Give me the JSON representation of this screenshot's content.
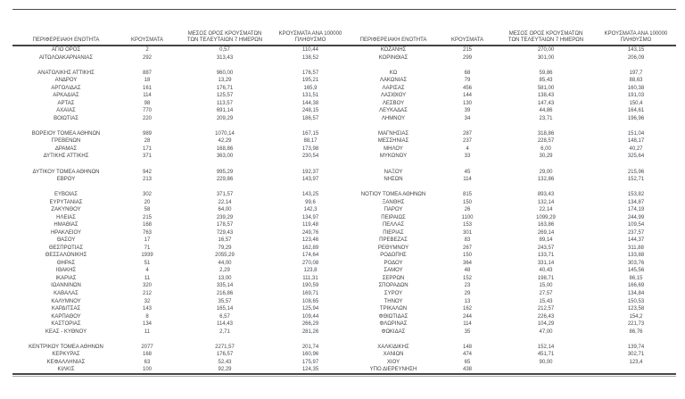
{
  "header": {
    "col_region": "ΠΕΡΙΦΕΡΕΙΑΚΗ ΕΝΟΤΗΤΑ",
    "col_cases": "ΚΡΟΥΣΜΑΤΑ",
    "col_avg7_line1": "ΜΕΣΟΣ ΟΡΟΣ ΚΡΟΥΣΜΑΤΩΝ",
    "col_avg7_line2": "ΤΩΝ ΤΕΛΕΥΤΑΙΩΝ 7 ΗΜΕΡΩΝ",
    "col_per100k_line1": "ΚΡΟΥΣΜΑΤΑ ΑΝΑ 100000",
    "col_per100k_line2": "ΠΛΗΘΥΣΜΟ"
  },
  "colors": {
    "text": "#3f3f3f",
    "numbers": "#45484e",
    "rule_dark": "#474747",
    "rule_light": "#a9a9a9",
    "background": "#ffffff"
  },
  "left_table": {
    "rows": [
      [
        "ΑΓΙΟ ΟΡΟΣ",
        "2",
        "0,57",
        "110,44"
      ],
      [
        "ΑΙΤΩΛΟΑΚΑΡΝΑΝΙΑΣ",
        "292",
        "313,43",
        "138,52"
      ],
      [
        "",
        "",
        "",
        ""
      ],
      [
        "ΑΝΑΤΟΛΙΚΗΣ ΑΤΤΙΚΗΣ",
        "887",
        "960,00",
        "176,57"
      ],
      [
        "ΑΝΔΡΟΥ",
        "18",
        "13,29",
        "195,21"
      ],
      [
        "ΑΡΓΟΛΙΔΑΣ",
        "161",
        "176,71",
        "165,9"
      ],
      [
        "ΑΡΚΑΔΙΑΣ",
        "114",
        "125,57",
        "131,51"
      ],
      [
        "ΑΡΤΑΣ",
        "98",
        "113,57",
        "144,38"
      ],
      [
        "ΑΧΑΪΑΣ",
        "770",
        "691,14",
        "248,15"
      ],
      [
        "ΒΟΙΩΤΙΑΣ",
        "220",
        "209,29",
        "186,57"
      ],
      [
        "",
        "",
        "",
        ""
      ],
      [
        "ΒΟΡΕΙΟΥ ΤΟΜΕΑ ΑΘΗΝΩΝ",
        "989",
        "1070,14",
        "167,15"
      ],
      [
        "ΓΡΕΒΕΝΩΝ",
        "28",
        "42,29",
        "88,17"
      ],
      [
        "ΔΡΑΜΑΣ",
        "171",
        "168,86",
        "173,98"
      ],
      [
        "ΔΥΤΙΚΗΣ ΑΤΤΙΚΗΣ",
        "371",
        "363,00",
        "230,54"
      ],
      [
        "",
        "",
        "",
        ""
      ],
      [
        "ΔΥΤΙΚΟΥ ΤΟΜΕΑ ΑΘΗΝΩΝ",
        "942",
        "995,29",
        "192,37"
      ],
      [
        "ΕΒΡΟΥ",
        "213",
        "229,86",
        "143,97"
      ],
      [
        "",
        "",
        "",
        ""
      ],
      [
        "ΕΥΒΟΙΑΣ",
        "302",
        "371,57",
        "143,25"
      ],
      [
        "ΕΥΡΥΤΑΝΙΑΣ",
        "20",
        "22,14",
        "99,6"
      ],
      [
        "ΖΑΚΥΝΘΟΥ",
        "58",
        "64,00",
        "142,3"
      ],
      [
        "ΗΛΕΙΑΣ",
        "215",
        "239,29",
        "134,97"
      ],
      [
        "ΗΜΑΘΙΑΣ",
        "168",
        "178,57",
        "119,48"
      ],
      [
        "ΗΡΑΚΛΕΙΟΥ",
        "763",
        "729,43",
        "249,76"
      ],
      [
        "ΘΑΣΟΥ",
        "17",
        "16,57",
        "123,46"
      ],
      [
        "ΘΕΣΠΡΩΤΙΑΣ",
        "71",
        "79,29",
        "162,89"
      ],
      [
        "ΘΕΣΣΑΛΟΝΙΚΗΣ",
        "1939",
        "2055,29",
        "174,64"
      ],
      [
        "ΘΗΡΑΣ",
        "51",
        "44,00",
        "270,08"
      ],
      [
        "ΙΘΑΚΗΣ",
        "4",
        "2,29",
        "123,8"
      ],
      [
        "ΙΚΑΡΙΑΣ",
        "11",
        "13,00",
        "111,31"
      ],
      [
        "ΙΩΑΝΝΙΝΩΝ",
        "320",
        "335,14",
        "190,59"
      ],
      [
        "ΚΑΒΑΛΑΣ",
        "212",
        "216,86",
        "169,71"
      ],
      [
        "ΚΑΛΥΜΝΟΥ",
        "32",
        "35,57",
        "108,65"
      ],
      [
        "ΚΑΡΔΙΤΣΑΣ",
        "143",
        "165,14",
        "125,94"
      ],
      [
        "ΚΑΡΠΑΘΟΥ",
        "8",
        "6,57",
        "109,44"
      ],
      [
        "ΚΑΣΤΟΡΙΑΣ",
        "134",
        "114,43",
        "266,29"
      ],
      [
        "ΚΕΑΣ - ΚΥΘΝΟΥ",
        "11",
        "2,71",
        "281,26"
      ],
      [
        "",
        "",
        "",
        ""
      ],
      [
        "ΚΕΝΤΡΙΚΟΥ ΤΟΜΕΑ ΑΘΗΝΩΝ",
        "2077",
        "2271,57",
        "201,74"
      ],
      [
        "ΚΕΡΚΥΡΑΣ",
        "168",
        "176,57",
        "160,96"
      ],
      [
        "ΚΕΦΑΛΛΗΝΙΑΣ",
        "63",
        "52,43",
        "175,97"
      ],
      [
        "ΚΙΛΚΙΣ",
        "100",
        "92,29",
        "124,35"
      ]
    ]
  },
  "right_table": {
    "rows": [
      [
        "ΚΟΖΑΝΗΣ",
        "215",
        "270,00",
        "143,15"
      ],
      [
        "ΚΟΡΙΝΘΙΑΣ",
        "299",
        "301,00",
        "206,09"
      ],
      [
        "",
        "",
        "",
        ""
      ],
      [
        "ΚΩ",
        "68",
        "59,86",
        "197,7"
      ],
      [
        "ΛΑΚΩΝΙΑΣ",
        "79",
        "85,43",
        "88,63"
      ],
      [
        "ΛΑΡΙΣΑΣ",
        "456",
        "581,00",
        "160,38"
      ],
      [
        "ΛΑΣΙΘΙΟΥ",
        "144",
        "138,43",
        "191,03"
      ],
      [
        "ΛΕΣΒΟΥ",
        "130",
        "147,43",
        "150,4"
      ],
      [
        "ΛΕΥΚΑΔΑΣ",
        "39",
        "44,86",
        "164,61"
      ],
      [
        "ΛΗΜΝΟΥ",
        "34",
        "23,71",
        "196,96"
      ],
      [
        "",
        "",
        "",
        ""
      ],
      [
        "ΜΑΓΝΗΣΙΑΣ",
        "287",
        "318,86",
        "151,04"
      ],
      [
        "ΜΕΣΣΗΝΙΑΣ",
        "237",
        "228,57",
        "148,17"
      ],
      [
        "ΜΗΛΟΥ",
        "4",
        "6,00",
        "40,27"
      ],
      [
        "ΜΥΚΟΝΟΥ",
        "33",
        "30,29",
        "325,64"
      ],
      [
        "",
        "",
        "",
        ""
      ],
      [
        "ΝΑΞΟΥ",
        "45",
        "29,00",
        "215,96"
      ],
      [
        "ΝΗΣΩΝ",
        "114",
        "132,86",
        "152,71"
      ],
      [
        "",
        "",
        "",
        ""
      ],
      [
        "ΝΟΤΙΟΥ ΤΟΜΕΑ ΑΘΗΝΩΝ",
        "815",
        "893,43",
        "153,82"
      ],
      [
        "ΞΑΝΘΗΣ",
        "150",
        "132,14",
        "134,87"
      ],
      [
        "ΠΑΡΟΥ",
        "26",
        "22,14",
        "174,19"
      ],
      [
        "ΠΕΙΡΑΙΩΣ",
        "1100",
        "1099,29",
        "244,99"
      ],
      [
        "ΠΕΛΛΑΣ",
        "153",
        "163,86",
        "109,54"
      ],
      [
        "ΠΙΕΡΙΑΣ",
        "301",
        "269,14",
        "237,57"
      ],
      [
        "ΠΡΕΒΕΖΑΣ",
        "83",
        "89,14",
        "144,37"
      ],
      [
        "ΡΕΘΥΜΝΟΥ",
        "267",
        "243,57",
        "311,88"
      ],
      [
        "ΡΟΔΟΠΗΣ",
        "150",
        "133,71",
        "133,88"
      ],
      [
        "ΡΟΔΟΥ",
        "364",
        "331,14",
        "303,76"
      ],
      [
        "ΣΑΜΟΥ",
        "48",
        "40,43",
        "145,56"
      ],
      [
        "ΣΕΡΡΩΝ",
        "152",
        "198,71",
        "86,15"
      ],
      [
        "ΣΠΟΡΑΔΩΝ",
        "23",
        "15,00",
        "166,69"
      ],
      [
        "ΣΥΡΟΥ",
        "29",
        "27,57",
        "134,84"
      ],
      [
        "ΤΗΝΟΥ",
        "13",
        "15,43",
        "150,53"
      ],
      [
        "ΤΡΙΚΑΛΩΝ",
        "162",
        "212,57",
        "123,58"
      ],
      [
        "ΦΘΙΩΤΙΔΑΣ",
        "244",
        "226,43",
        "154,2"
      ],
      [
        "ΦΛΩΡΙΝΑΣ",
        "114",
        "104,29",
        "221,73"
      ],
      [
        "ΦΩΚΙΔΑΣ",
        "35",
        "47,00",
        "86,76"
      ],
      [
        "",
        "",
        "",
        ""
      ],
      [
        "ΧΑΛΚΙΔΙΚΗΣ",
        "148",
        "152,14",
        "139,74"
      ],
      [
        "ΧΑΝΙΩΝ",
        "474",
        "451,71",
        "302,71"
      ],
      [
        "ΧΙΟΥ",
        "65",
        "90,00",
        "123,4"
      ],
      [
        "ΥΠΟ ΔΙΕΡΕΥΝΗΣΗ",
        "438",
        "",
        ""
      ]
    ]
  }
}
